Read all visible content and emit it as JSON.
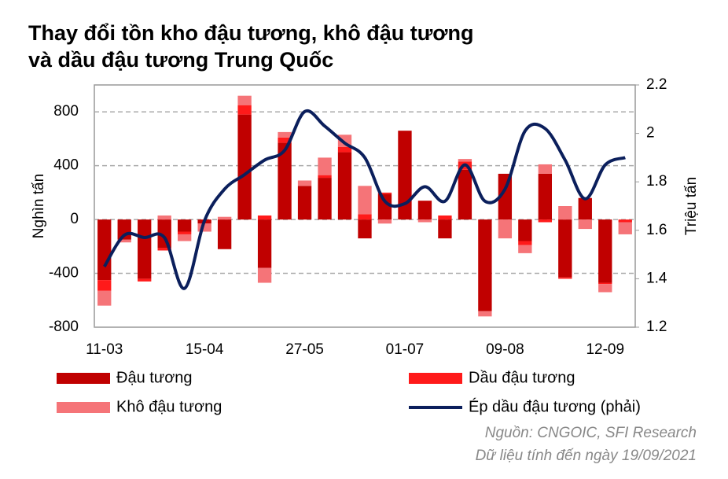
{
  "chart_data": {
    "type": "bar",
    "title": "Thay đổi tồn kho đậu tương, khô đậu tương và dầu đậu tương Trung Quốc",
    "ylabel": "Nghìn tấn",
    "y2label": "Triệu tấn",
    "source": [
      "Nguồn: CNGOIC, SFI Research",
      "Dữ liệu tính đến ngày 19/09/2021"
    ],
    "categories": [
      "11-03",
      null,
      null,
      null,
      null,
      "15-04",
      null,
      null,
      null,
      null,
      "27-05",
      null,
      null,
      null,
      null,
      "01-07",
      null,
      null,
      null,
      null,
      "09-08",
      null,
      null,
      null,
      null,
      "12-09",
      null
    ],
    "series": [
      {
        "name": "Đậu tương",
        "color": "#c00000",
        "values": [
          -450,
          -150,
          -440,
          -210,
          -90,
          -30,
          -220,
          780,
          -360,
          570,
          250,
          310,
          500,
          -140,
          190,
          660,
          140,
          -140,
          370,
          -680,
          340,
          -160,
          340,
          -430,
          160,
          -470,
          0
        ]
      },
      {
        "name": "Dầu đậu tương",
        "color": "#ff1a1a",
        "values": [
          -80,
          0,
          -20,
          -20,
          -20,
          0,
          0,
          70,
          30,
          40,
          0,
          20,
          40,
          40,
          10,
          0,
          0,
          30,
          60,
          0,
          0,
          -30,
          -20,
          -10,
          0,
          -10,
          -20
        ]
      },
      {
        "name": "Khô đậu tương",
        "color": "#f57478",
        "values": [
          -110,
          -20,
          0,
          30,
          -50,
          -60,
          20,
          70,
          -110,
          40,
          40,
          130,
          90,
          210,
          -30,
          0,
          -20,
          0,
          20,
          -40,
          -140,
          -60,
          70,
          100,
          -70,
          -60,
          -90
        ]
      },
      {
        "name": "Ép dầu đậu tương (phải)",
        "type": "line",
        "axis": "y2",
        "color": "#0b1f5c",
        "values": [
          1.45,
          1.58,
          1.57,
          1.57,
          1.36,
          1.64,
          1.77,
          1.83,
          1.89,
          1.93,
          2.09,
          2.03,
          1.96,
          1.9,
          1.72,
          1.71,
          1.78,
          1.72,
          1.87,
          1.72,
          1.77,
          2.01,
          2.02,
          1.89,
          1.73,
          1.87,
          1.9
        ]
      }
    ],
    "ylim": [
      -800,
      1000
    ],
    "yticks": [
      -800,
      -400,
      0,
      400,
      800
    ],
    "y2lim": [
      1.2,
      2.2
    ],
    "y2ticks": [
      1.2,
      1.4,
      1.6,
      1.8,
      2,
      2.2
    ],
    "grid": true
  }
}
